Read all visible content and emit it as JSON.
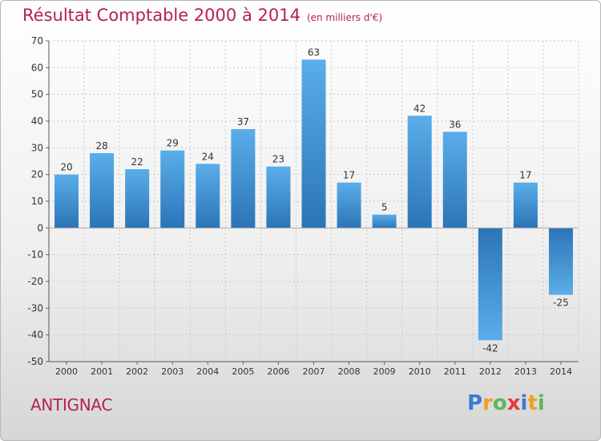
{
  "chart_data": {
    "type": "bar",
    "title": "Résultat Comptable 2000 à 2014",
    "unit_label": "(en milliers d'€)",
    "categories": [
      "2000",
      "2001",
      "2002",
      "2003",
      "2004",
      "2005",
      "2006",
      "2007",
      "2008",
      "2009",
      "2010",
      "2011",
      "2012",
      "2013",
      "2014"
    ],
    "values": [
      20,
      28,
      22,
      29,
      24,
      37,
      23,
      63,
      17,
      5,
      42,
      36,
      -42,
      17,
      -25
    ],
    "ylim": [
      -50,
      70
    ],
    "yticks": [
      70,
      60,
      50,
      40,
      30,
      20,
      10,
      0,
      -10,
      -20,
      -30,
      -40,
      -50
    ],
    "grid": true,
    "xlabel": "",
    "ylabel": "",
    "bar_color": "#3f8fd6"
  },
  "commune": "ANTIGNAC",
  "logo": {
    "letters": [
      "P",
      "r",
      "o",
      "x",
      "i",
      "t",
      "i"
    ],
    "colors": [
      "#3a7bd5",
      "#f0a020",
      "#5cb85c",
      "#e03c3c",
      "#3a7bd5",
      "#f0a020",
      "#5cb85c"
    ]
  }
}
